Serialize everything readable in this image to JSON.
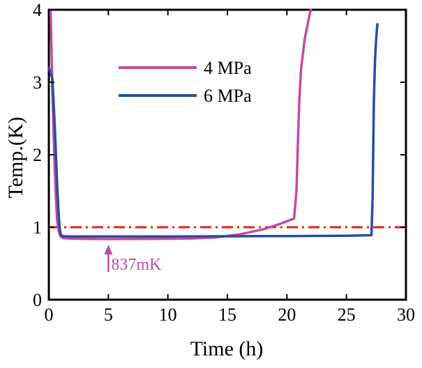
{
  "chart_data": {
    "type": "line",
    "title": "",
    "xlabel": "Time (h)",
    "ylabel": "Temp.(K)",
    "xlim": [
      0,
      30
    ],
    "ylim": [
      0,
      4
    ],
    "xticks": [
      0,
      5,
      10,
      15,
      20,
      25,
      30
    ],
    "yticks": [
      0,
      1,
      2,
      3,
      4
    ],
    "grid": false,
    "legend_position": "upper-left",
    "series": [
      {
        "name": "4 MPa",
        "color": "#c04ca0",
        "x": [
          0.15,
          0.2,
          0.3,
          0.4,
          0.5,
          0.6,
          0.7,
          0.85,
          1.0,
          1.2,
          1.6,
          2.5,
          5.0,
          8.0,
          10.0,
          12.0,
          14.0,
          16.0,
          18.0,
          19.5,
          20.6,
          20.8,
          20.95,
          21.05,
          21.2,
          21.5,
          21.8,
          22.0
        ],
        "y": [
          4.0,
          3.6,
          2.9,
          2.3,
          1.8,
          1.4,
          1.1,
          0.93,
          0.87,
          0.85,
          0.845,
          0.84,
          0.837,
          0.838,
          0.84,
          0.845,
          0.86,
          0.9,
          0.97,
          1.05,
          1.12,
          1.5,
          2.3,
          2.8,
          3.2,
          3.6,
          3.85,
          4.0
        ]
      },
      {
        "name": "6 MPa",
        "color": "#2a4ca0",
        "x": [
          0.0,
          0.3,
          0.5,
          0.6,
          0.7,
          0.8,
          0.9,
          1.0,
          1.1,
          1.3,
          2.0,
          5.0,
          10.0,
          15.0,
          20.0,
          25.0,
          27.1,
          27.2,
          27.25,
          27.3,
          27.4,
          27.5,
          27.6
        ],
        "y": [
          3.2,
          3.05,
          2.4,
          2.0,
          1.6,
          1.25,
          1.0,
          0.9,
          0.88,
          0.875,
          0.873,
          0.872,
          0.872,
          0.875,
          0.878,
          0.882,
          0.89,
          1.4,
          2.1,
          2.7,
          3.3,
          3.6,
          3.8
        ]
      }
    ],
    "reference_line": {
      "y": 1.0,
      "style": "dash-dot",
      "color": "#e0201e"
    },
    "annotation": {
      "text": "837mK",
      "x": 5,
      "y": 0.837,
      "color": "#c04ca0",
      "arrow": "up"
    }
  }
}
